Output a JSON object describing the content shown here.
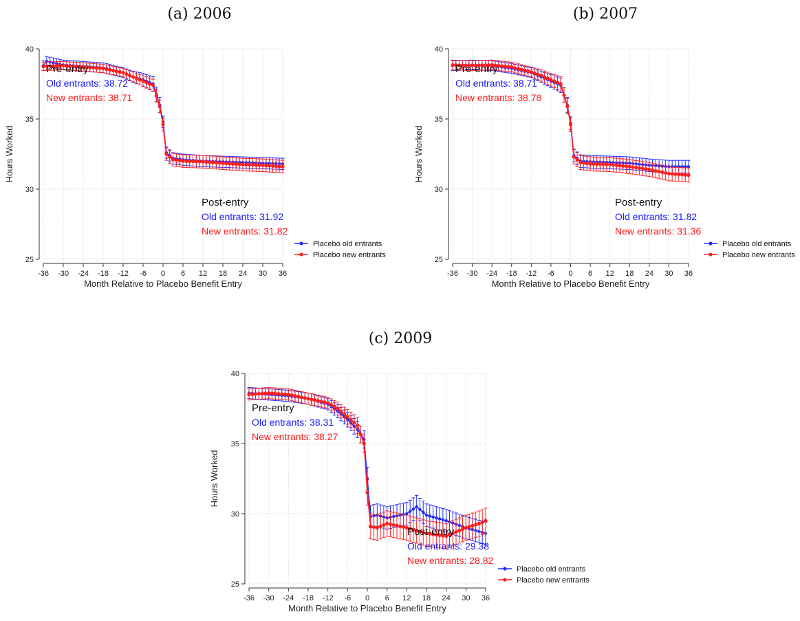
{
  "colors": {
    "old": "#1f2bff",
    "new": "#ff1f1f",
    "grid": "#d9d9d9",
    "axis": "#333333"
  },
  "chart_data": [
    {
      "type": "line",
      "panel_title": "(a) 2006",
      "xlabel": "Month Relative to Placebo Benefit Entry",
      "ylabel": "Hours Worked",
      "xlim": [
        -36,
        36
      ],
      "ylim": [
        25,
        40
      ],
      "xticks": [
        "-36",
        "-30",
        "-24",
        "-18",
        "-12",
        "-6",
        "0",
        "6",
        "12",
        "18",
        "24",
        "30",
        "36"
      ],
      "yticks": [
        "25",
        "30",
        "35",
        "40"
      ],
      "grid": true,
      "legend": "right",
      "pre": {
        "title": "Pre-entry",
        "old": "Old entrants: 38.72",
        "new": "New entrants: 38.71"
      },
      "post": {
        "title": "Post-entry",
        "old": "Old entrants: 31.92",
        "new": "New entrants: 31.82"
      },
      "series": [
        {
          "name": "Placebo old entrants",
          "anchors": [
            [
              -36,
              38.8
            ],
            [
              -35,
              39.1
            ],
            [
              -30,
              38.85
            ],
            [
              -24,
              38.75
            ],
            [
              -18,
              38.65
            ],
            [
              -12,
              38.3
            ],
            [
              -9,
              38.0
            ],
            [
              -6,
              37.8
            ],
            [
              -3,
              37.5
            ],
            [
              -1,
              36.0
            ],
            [
              0,
              34.8
            ],
            [
              1,
              32.6
            ],
            [
              3,
              32.2
            ],
            [
              6,
              32.1
            ],
            [
              12,
              32.0
            ],
            [
              18,
              31.95
            ],
            [
              24,
              31.9
            ],
            [
              30,
              31.85
            ],
            [
              36,
              31.8
            ]
          ],
          "err_pre": 0.35,
          "err_post": 0.4
        },
        {
          "name": "Placebo new entrants",
          "anchors": [
            [
              -36,
              38.75
            ],
            [
              -30,
              38.8
            ],
            [
              -24,
              38.7
            ],
            [
              -18,
              38.6
            ],
            [
              -12,
              38.3
            ],
            [
              -9,
              38.0
            ],
            [
              -6,
              37.7
            ],
            [
              -3,
              37.4
            ],
            [
              -1,
              35.9
            ],
            [
              0,
              34.6
            ],
            [
              1,
              32.5
            ],
            [
              3,
              32.1
            ],
            [
              6,
              32.0
            ],
            [
              12,
              31.95
            ],
            [
              18,
              31.85
            ],
            [
              24,
              31.75
            ],
            [
              30,
              31.7
            ],
            [
              36,
              31.6
            ]
          ],
          "err_pre": 0.3,
          "err_post": 0.45
        }
      ]
    },
    {
      "type": "line",
      "panel_title": "(b) 2007",
      "xlabel": "Month Relative to Placebo Benefit Entry",
      "ylabel": "Hours Worked",
      "xlim": [
        -36,
        36
      ],
      "ylim": [
        25,
        40
      ],
      "xticks": [
        "-36",
        "-30",
        "-24",
        "-18",
        "-12",
        "-6",
        "0",
        "6",
        "12",
        "18",
        "24",
        "30",
        "36"
      ],
      "yticks": [
        "25",
        "30",
        "35",
        "40"
      ],
      "grid": true,
      "legend": "right",
      "pre": {
        "title": "Pre-entry",
        "old": "Old entrants: 38.71",
        "new": "New entrants: 38.78"
      },
      "post": {
        "title": "Post-entry",
        "old": "Old entrants: 31.82",
        "new": "New entrants: 31.36"
      },
      "series": [
        {
          "name": "Placebo old entrants",
          "anchors": [
            [
              -36,
              38.8
            ],
            [
              -30,
              38.85
            ],
            [
              -24,
              38.8
            ],
            [
              -18,
              38.6
            ],
            [
              -12,
              38.3
            ],
            [
              -9,
              38.0
            ],
            [
              -6,
              37.7
            ],
            [
              -3,
              37.4
            ],
            [
              -1,
              36.0
            ],
            [
              0,
              34.7
            ],
            [
              1,
              32.4
            ],
            [
              3,
              32.0
            ],
            [
              6,
              31.95
            ],
            [
              12,
              31.9
            ],
            [
              18,
              31.85
            ],
            [
              24,
              31.7
            ],
            [
              30,
              31.6
            ],
            [
              36,
              31.6
            ]
          ],
          "err_pre": 0.35,
          "err_post": 0.45
        },
        {
          "name": "Placebo new entrants",
          "anchors": [
            [
              -36,
              38.85
            ],
            [
              -30,
              38.8
            ],
            [
              -24,
              38.85
            ],
            [
              -18,
              38.7
            ],
            [
              -12,
              38.35
            ],
            [
              -9,
              38.1
            ],
            [
              -6,
              37.8
            ],
            [
              -3,
              37.5
            ],
            [
              -1,
              35.9
            ],
            [
              0,
              34.6
            ],
            [
              1,
              32.3
            ],
            [
              3,
              31.9
            ],
            [
              6,
              31.8
            ],
            [
              12,
              31.75
            ],
            [
              18,
              31.6
            ],
            [
              24,
              31.4
            ],
            [
              30,
              31.1
            ],
            [
              36,
              31.0
            ]
          ],
          "err_pre": 0.35,
          "err_post": 0.5
        }
      ]
    },
    {
      "type": "line",
      "panel_title": "(c) 2009",
      "xlabel": "Month Relative to Placebo Benefit Entry",
      "ylabel": "Hours Worked",
      "xlim": [
        -36,
        36
      ],
      "ylim": [
        25,
        40
      ],
      "xticks": [
        "-36",
        "-30",
        "-24",
        "-18",
        "-12",
        "-6",
        "0",
        "6",
        "12",
        "18",
        "24",
        "30",
        "36"
      ],
      "yticks": [
        "25",
        "30",
        "35",
        "40"
      ],
      "grid": true,
      "legend": "right",
      "pre": {
        "title": "Pre-entry",
        "old": "Old entrants: 38.31",
        "new": "New entrants: 38.27"
      },
      "post": {
        "title": "Post-entry",
        "old": "Old entrants: 29.38",
        "new": "New entrants: 28.82"
      },
      "series": [
        {
          "name": "Placebo old entrants",
          "anchors": [
            [
              -36,
              38.6
            ],
            [
              -30,
              38.5
            ],
            [
              -24,
              38.4
            ],
            [
              -18,
              38.2
            ],
            [
              -12,
              37.8
            ],
            [
              -9,
              37.3
            ],
            [
              -6,
              36.7
            ],
            [
              -3,
              36.0
            ],
            [
              -1,
              35.3
            ],
            [
              0,
              32.5
            ],
            [
              1,
              29.8
            ],
            [
              3,
              29.9
            ],
            [
              6,
              29.7
            ],
            [
              12,
              30.0
            ],
            [
              15,
              30.5
            ],
            [
              18,
              29.9
            ],
            [
              24,
              29.5
            ],
            [
              30,
              29.0
            ],
            [
              36,
              28.6
            ]
          ],
          "err_pre": 0.4,
          "err_post": 0.8
        },
        {
          "name": "Placebo new entrants",
          "anchors": [
            [
              -36,
              38.5
            ],
            [
              -30,
              38.6
            ],
            [
              -24,
              38.5
            ],
            [
              -18,
              38.2
            ],
            [
              -12,
              37.9
            ],
            [
              -9,
              37.5
            ],
            [
              -6,
              36.9
            ],
            [
              -3,
              36.3
            ],
            [
              -1,
              35.0
            ],
            [
              0,
              31.5
            ],
            [
              1,
              29.1
            ],
            [
              3,
              29.0
            ],
            [
              6,
              29.3
            ],
            [
              12,
              29.0
            ],
            [
              18,
              28.6
            ],
            [
              24,
              28.4
            ],
            [
              30,
              29.0
            ],
            [
              34,
              29.3
            ],
            [
              36,
              29.5
            ]
          ],
          "err_pre": 0.4,
          "err_post": 0.9
        }
      ]
    }
  ]
}
